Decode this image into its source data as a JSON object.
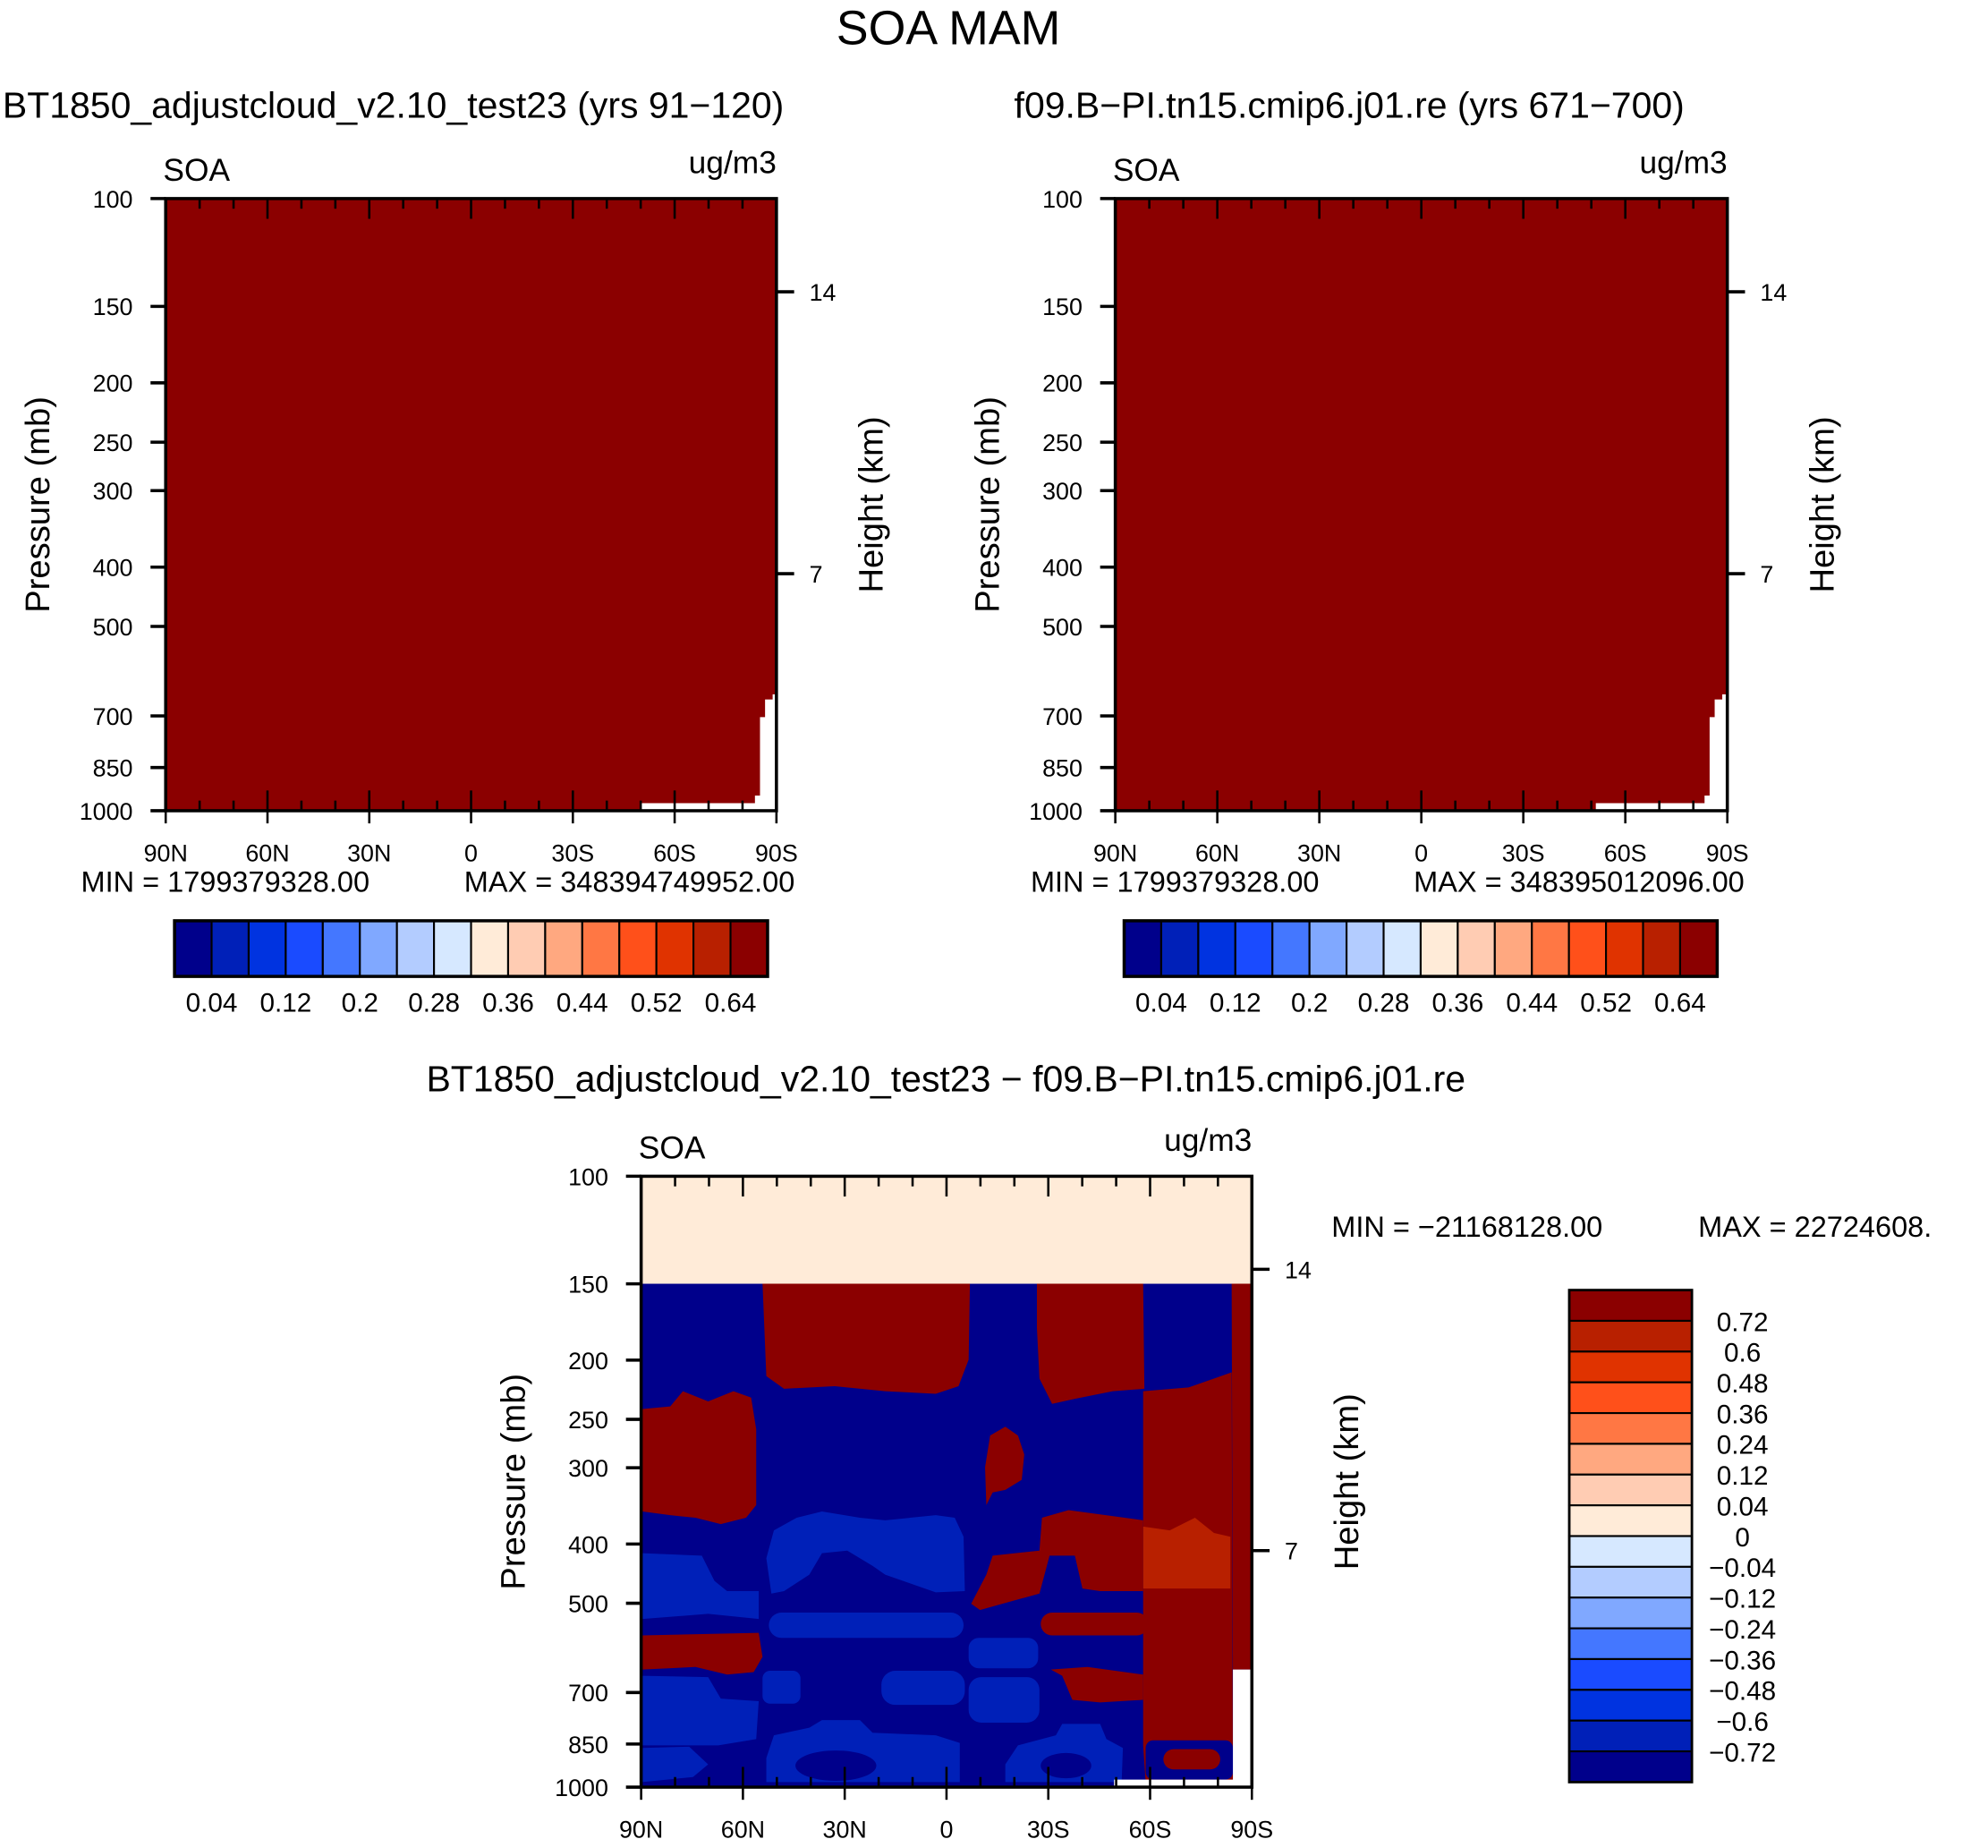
{
  "title": "SOA MAM",
  "panels": [
    {
      "title": "BT1850_adjustcloud_v2.10_test23 (yrs 91−120)",
      "left_label": "SOA",
      "units": "ug/m3",
      "min_label": "MIN = 1799379328.00",
      "max_label": "MAX = 348394749952.00"
    },
    {
      "title": "f09.B−PI.tn15.cmip6.j01.re (yrs 671−700)",
      "left_label": "SOA",
      "units": "ug/m3",
      "min_label": "MIN = 1799379328.00",
      "max_label": "MAX = 348395012096.00"
    },
    {
      "title": "BT1850_adjustcloud_v2.10_test23 − f09.B−PI.tn15.cmip6.j01.re",
      "left_label": "SOA",
      "units": "ug/m3",
      "min_label": "MIN = −21168128.00",
      "max_label": "MAX = 22724608."
    }
  ],
  "chart_data": {
    "type": "heatmap",
    "xlabel": "",
    "ylabel": "Pressure (mb)",
    "y2label": "Height (km)",
    "x_ticks": [
      "90N",
      "60N",
      "30N",
      "0",
      "30S",
      "60S",
      "90S"
    ],
    "x_range": [
      90,
      -90
    ],
    "y_ticks": [
      100,
      150,
      200,
      250,
      300,
      400,
      500,
      700,
      850,
      1000
    ],
    "y_range": [
      100,
      1000
    ],
    "y_scale": "log",
    "y2_ticks": [
      {
        "label": "14",
        "pressure": 142
      },
      {
        "label": "7",
        "pressure": 410
      }
    ],
    "colorbar_abs": {
      "labels": [
        "0.04",
        "0.12",
        "0.2",
        "0.28",
        "0.36",
        "0.44",
        "0.52",
        "0.64"
      ],
      "colors": [
        "#00008b",
        "#0020b8",
        "#0033e0",
        "#1a4bff",
        "#4477ff",
        "#80a8ff",
        "#b3ccff",
        "#d6e8ff",
        "#ffebd8",
        "#ffccb3",
        "#ffa880",
        "#ff7744",
        "#ff501a",
        "#e03300",
        "#b82000",
        "#8b0000"
      ]
    },
    "colorbar_diff": {
      "labels": [
        "0.72",
        "0.6",
        "0.48",
        "0.36",
        "0.24",
        "0.12",
        "0.04",
        "0",
        "−0.04",
        "−0.12",
        "−0.24",
        "−0.36",
        "−0.48",
        "−0.6",
        "−0.72"
      ],
      "colors": [
        "#8b0000",
        "#b82000",
        "#e03300",
        "#ff501a",
        "#ff7744",
        "#ffa880",
        "#ffccb3",
        "#ffebd8",
        "#d6e8ff",
        "#b3ccff",
        "#80a8ff",
        "#4477ff",
        "#1a4bff",
        "#0033e0",
        "#0020b8",
        "#00008b"
      ]
    },
    "panel_fill_abs": "#8b0000"
  }
}
